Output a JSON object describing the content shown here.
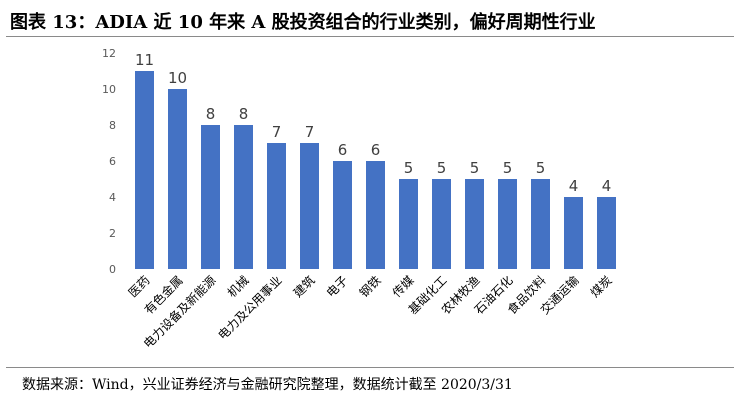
{
  "title": "图表 13：ADIA 近 10 年来 A 股投资组合的行业类别，偏好周期性行业",
  "source": "数据来源：Wind，兴业证券经济与金融研究院整理，数据统计截至 2020/3/31",
  "chart_data": {
    "type": "bar",
    "categories": [
      "医药",
      "有色金属",
      "电力设备及新能源",
      "机械",
      "电力及公用事业",
      "建筑",
      "电子",
      "钢铁",
      "传媒",
      "基础化工",
      "农林牧渔",
      "石油石化",
      "食品饮料",
      "交通运输",
      "煤炭"
    ],
    "values": [
      11,
      10,
      8,
      8,
      7,
      7,
      6,
      6,
      5,
      5,
      5,
      5,
      5,
      4,
      4
    ],
    "yticks": [
      "0",
      "2",
      "4",
      "6",
      "8",
      "10",
      "12"
    ],
    "ylim": [
      0,
      12
    ],
    "bar_color": "#4472c4",
    "grid": false,
    "legend": false
  }
}
